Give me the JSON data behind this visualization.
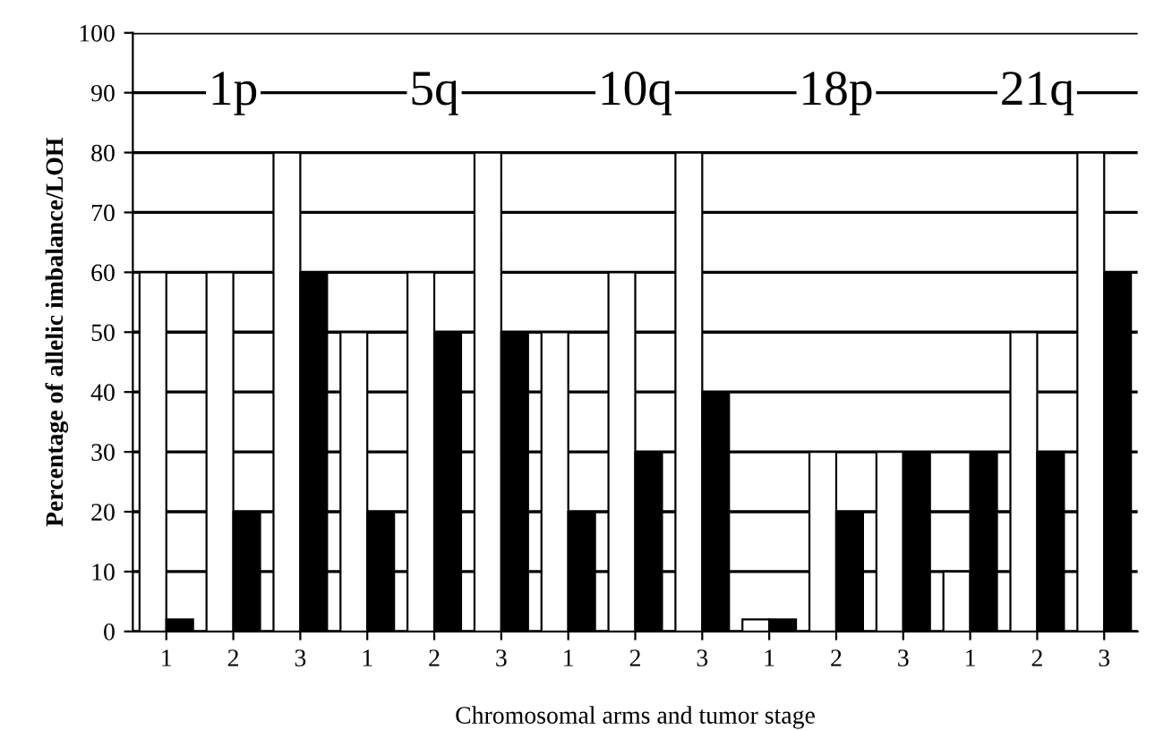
{
  "chart_data": {
    "type": "bar",
    "xlabel": "Chromosomal arms and tumor stage",
    "ylabel": "Percentage of allelic imbalance/LOH",
    "categories": [
      "1",
      "2",
      "3",
      "1",
      "2",
      "3",
      "1",
      "2",
      "3",
      "1",
      "2",
      "3",
      "1",
      "2",
      "3"
    ],
    "series": [
      {
        "color": "#ffffff",
        "values": [
          60,
          60,
          80,
          50,
          60,
          80,
          50,
          60,
          80,
          2,
          30,
          30,
          10,
          50,
          80
        ]
      },
      {
        "color": "#000000",
        "values": [
          2,
          20,
          60,
          20,
          50,
          50,
          20,
          30,
          40,
          2,
          20,
          30,
          30,
          30,
          60
        ]
      }
    ],
    "annotations": [
      "1p",
      "5q",
      "10q",
      "18p",
      "21q"
    ],
    "ylim": [
      0,
      100
    ],
    "yticks": [
      0,
      10,
      20,
      30,
      40,
      50,
      60,
      70,
      80,
      90,
      100
    ],
    "grid": "y",
    "legend": false
  }
}
